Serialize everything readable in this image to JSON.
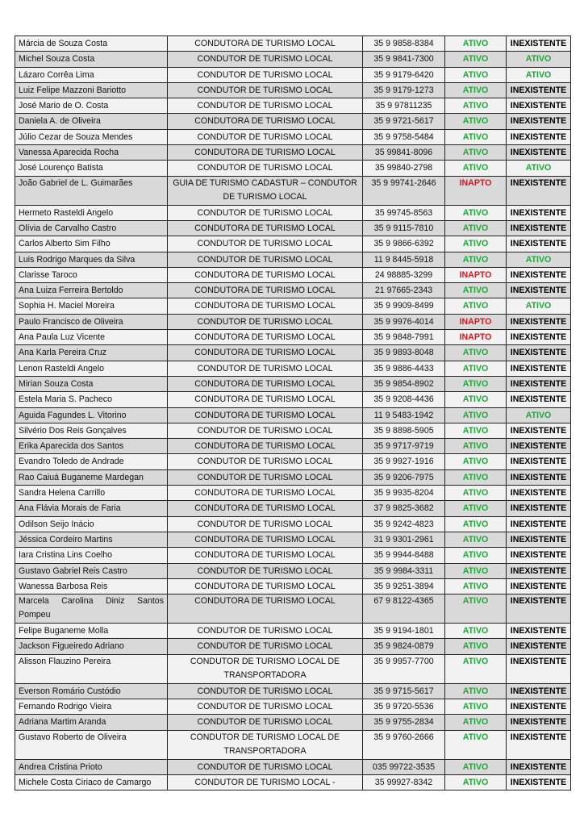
{
  "colors": {
    "ativo": "#1fa83a",
    "inapto": "#e0141e",
    "inexistente": "#000000",
    "row_light": "#f2f2f2",
    "row_dark": "#d9d9d9"
  },
  "rows": [
    {
      "name": "Márcia de Souza Costa",
      "role": "CONDUTORA DE TURISMO LOCAL",
      "phone": "35 9 9858-8384",
      "status": "ATIVO",
      "cadastur": "INEXISTENTE"
    },
    {
      "name": "Michel Souza Costa",
      "role": "CONDUTOR DE TURISMO LOCAL",
      "phone": "35 9 9841-7300",
      "status": "ATIVO",
      "cadastur": "ATIVO"
    },
    {
      "name": "Lázaro Corrêa Lima",
      "role": "CONDUTOR DE TURISMO LOCAL",
      "phone": "35 9 9179-6420",
      "status": "ATIVO",
      "cadastur": "ATIVO"
    },
    {
      "name": "Luiz Felipe Mazzoni Bariotto",
      "role": "CONDUTOR DE TURISMO LOCAL",
      "phone": "35 9 9179-1273",
      "status": "ATIVO",
      "cadastur": "INEXISTENTE"
    },
    {
      "name": "José Mario de O. Costa",
      "role": "CONDUTOR DE TURISMO LOCAL",
      "phone": "35 9 97811235",
      "status": "ATIVO",
      "cadastur": "INEXISTENTE"
    },
    {
      "name": "Daniela A. de Oliveira",
      "role": "CONDUTORA DE TURISMO LOCAL",
      "phone": "35 9 9721-5617",
      "status": "ATIVO",
      "cadastur": "INEXISTENTE"
    },
    {
      "name": "Júlio Cezar de Souza Mendes",
      "role": "CONDUTOR DE TURISMO LOCAL",
      "phone": "35 9 9758-5484",
      "status": "ATIVO",
      "cadastur": "INEXISTENTE"
    },
    {
      "name": "Vanessa Aparecida Rocha",
      "role": "CONDUTORA DE TURISMO LOCAL",
      "phone": "35 99841-8096",
      "status": "ATIVO",
      "cadastur": "INEXISTENTE"
    },
    {
      "name": "José Lourenço Batista",
      "role": "CONDUTOR DE TURISMO LOCAL",
      "phone": "35 99840-2798",
      "status": "ATIVO",
      "cadastur": "ATIVO"
    },
    {
      "name": "João Gabriel de L. Guimarães",
      "role": "GUIA DE TURISMO CADASTUR – CONDUTOR DE TURISMO LOCAL",
      "phone": "35 9 99741-2646",
      "status": "INAPTO",
      "cadastur": "INEXISTENTE",
      "two": true
    },
    {
      "name": "Hermeto Rasteldi Angelo",
      "role": "CONDUTOR DE TURISMO LOCAL",
      "phone": "35 99745-8563",
      "status": "ATIVO",
      "cadastur": "INEXISTENTE"
    },
    {
      "name": "Olívia de Carvalho Castro",
      "role": "CONDUTORA DE TURISMO LOCAL",
      "phone": "35 9 9115-7810",
      "status": "ATIVO",
      "cadastur": "INEXISTENTE"
    },
    {
      "name": "Carlos Alberto Sim Filho",
      "role": "CONDUTOR DE TURISMO LOCAL",
      "phone": "35 9 9866-6392",
      "status": "ATIVO",
      "cadastur": "INEXISTENTE"
    },
    {
      "name": "Luis Rodrigo Marques da Silva",
      "role": "CONDUTOR DE TURISMO LOCAL",
      "phone": "11 9 8445-5918",
      "status": "ATIVO",
      "cadastur": "ATIVO"
    },
    {
      "name": "Clarisse Taroco",
      "role": "CONDUTORA DE TURISMO LOCAL",
      "phone": "24 98885-3299",
      "status": "INAPTO",
      "cadastur": "INEXISTENTE"
    },
    {
      "name": "Ana Luiza Ferreira Bertoldo",
      "role": "CONDUTORA DE TURISMO LOCAL",
      "phone": "21 97665-2343",
      "status": "ATIVO",
      "cadastur": "INEXISTENTE"
    },
    {
      "name": "Sophia H. Maciel Moreira",
      "role": "CONDUTORA DE TURISMO LOCAL",
      "phone": "35 9 9909-8499",
      "status": "ATIVO",
      "cadastur": "ATIVO"
    },
    {
      "name": "Paulo Francisco de Oliveira",
      "role": "CONDUTOR DE TURISMO LOCAL",
      "phone": "35 9 9976-4014",
      "status": "INAPTO",
      "cadastur": "INEXISTENTE"
    },
    {
      "name": "Ana Paula Luz Vicente",
      "role": "CONDUTORA DE TURISMO LOCAL",
      "phone": "35 9 9848-7991",
      "status": "INAPTO",
      "cadastur": "INEXISTENTE"
    },
    {
      "name": "Ana Karla Pereira Cruz",
      "role": "CONDUTORA DE TURISMO LOCAL",
      "phone": "35 9 9893-8048",
      "status": "ATIVO",
      "cadastur": "INEXISTENTE"
    },
    {
      "name": "Lenon Rasteldi Angelo",
      "role": "CONDUTOR DE TURISMO LOCAL",
      "phone": "35 9 9886-4433",
      "status": "ATIVO",
      "cadastur": "INEXISTENTE"
    },
    {
      "name": "Mirian Souza Costa",
      "role": "CONDUTORA DE TURISMO LOCAL",
      "phone": "35 9 9854-8902",
      "status": "ATIVO",
      "cadastur": "INEXISTENTE"
    },
    {
      "name": "Estela Maria S. Pacheco",
      "role": "CONDUTORA DE TURISMO LOCAL",
      "phone": "35 9 9208-4436",
      "status": "ATIVO",
      "cadastur": "INEXISTENTE"
    },
    {
      "name": "Aguida Fagundes L. Vitorino",
      "role": "CONDUTORA DE TURISMO LOCAL",
      "phone": "11 9 5483-1942",
      "status": "ATIVO",
      "cadastur": "ATIVO"
    },
    {
      "name": "Silvério Dos Reis Gonçalves",
      "role": "CONDUTOR DE TURISMO LOCAL",
      "phone": "35 9 8898-5905",
      "status": "ATIVO",
      "cadastur": "INEXISTENTE"
    },
    {
      "name": "Erika Aparecida dos Santos",
      "role": "CONDUTORA DE TURISMO LOCAL",
      "phone": "35 9 9717-9719",
      "status": "ATIVO",
      "cadastur": "INEXISTENTE"
    },
    {
      "name": "Evandro Toledo de Andrade",
      "role": "CONDUTOR DE TURISMO LOCAL",
      "phone": "35 9 9927-1916",
      "status": "ATIVO",
      "cadastur": "INEXISTENTE"
    },
    {
      "name": "Rao Caiuá Buganeme Mardegan",
      "role": "CONDUTOR DE TURISMO LOCAL",
      "phone": "35 9 9206-7975",
      "status": "ATIVO",
      "cadastur": "INEXISTENTE"
    },
    {
      "name": "Sandra Helena Carrillo",
      "role": "CONDUTORA DE TURISMO LOCAL",
      "phone": "35 9 9935-8204",
      "status": "ATIVO",
      "cadastur": "INEXISTENTE"
    },
    {
      "name": "Ana Flávia Morais de Faria",
      "role": "CONDUTORA DE TURISMO LOCAL",
      "phone": "37 9 9825-3682",
      "status": "ATIVO",
      "cadastur": "INEXISTENTE"
    },
    {
      "name": "Odilson Seijo Inácio",
      "role": "CONDUTOR DE TURISMO LOCAL",
      "phone": "35 9 9242-4823",
      "status": "ATIVO",
      "cadastur": "INEXISTENTE"
    },
    {
      "name": "Jéssica Cordeiro Martins",
      "role": "CONDUTORA DE TURISMO LOCAL",
      "phone": "31 9 9301-2961",
      "status": "ATIVO",
      "cadastur": "INEXISTENTE"
    },
    {
      "name": "Iara Cristina Lins Coelho",
      "role": "CONDUTORA DE TURISMO LOCAL",
      "phone": "35 9 9944-8488",
      "status": "ATIVO",
      "cadastur": "INEXISTENTE"
    },
    {
      "name": "Gustavo Gabriel Reis Castro",
      "role": "CONDUTOR DE TURISMO LOCAL",
      "phone": "35 9 9984-3311",
      "status": "ATIVO",
      "cadastur": "INEXISTENTE"
    },
    {
      "name": "Wanessa Barbosa Reis",
      "role": "CONDUTORA DE TURISMO LOCAL",
      "phone": "35 9 9251-3894",
      "status": "ATIVO",
      "cadastur": "INEXISTENTE"
    },
    {
      "name": "Marcela Carolina Diniz Santos Pompeu",
      "role": "CONDUTORA DE TURISMO LOCAL",
      "phone": "67 9 8122-4365",
      "status": "ATIVO",
      "cadastur": "INEXISTENTE",
      "two": true
    },
    {
      "name": "Felipe Buganeme Molla",
      "role": "CONDUTOR DE TURISMO LOCAL",
      "phone": "35 9 9194-1801",
      "status": "ATIVO",
      "cadastur": "INEXISTENTE"
    },
    {
      "name": "Jackson Figueiredo Adriano",
      "role": "CONDUTOR DE TURISMO LOCAL",
      "phone": "35 9 9824-0879",
      "status": "ATIVO",
      "cadastur": "INEXISTENTE"
    },
    {
      "name": "Alisson Flauzino Pereira",
      "role": "CONDUTOR DE TURISMO LOCAL DE TRANSPORTADORA",
      "phone": "35 9 9957-7700",
      "status": "ATIVO",
      "cadastur": "INEXISTENTE",
      "two": true
    },
    {
      "name": "Everson Romário Custódio",
      "role": "CONDUTOR DE TURISMO LOCAL",
      "phone": "35 9 9715-5617",
      "status": "ATIVO",
      "cadastur": "INEXISTENTE"
    },
    {
      "name": "Fernando Rodrigo Vieira",
      "role": "CONDUTOR DE TURISMO LOCAL",
      "phone": "35 9 9720-5536",
      "status": "ATIVO",
      "cadastur": "INEXISTENTE"
    },
    {
      "name": "Adriana Martim Aranda",
      "role": "CONDUTOR DE TURISMO LOCAL",
      "phone": "35 9 9755-2834",
      "status": "ATIVO",
      "cadastur": "INEXISTENTE"
    },
    {
      "name": "Gustavo Roberto de Oliveira",
      "role": "CONDUTOR DE TURISMO LOCAL DE TRANSPORTADORA",
      "phone": "35 9 9760-2666",
      "status": "ATIVO",
      "cadastur": "INEXISTENTE",
      "two": true
    },
    {
      "name": "Andrea Cristina Prioto",
      "role": "CONDUTOR DE TURISMO LOCAL",
      "phone": "035 99722-3535",
      "status": "ATIVO",
      "cadastur": "INEXISTENTE"
    },
    {
      "name": "Michele Costa Ciriaco de Camargo",
      "role": "CONDUTOR DE TURISMO LOCAL -",
      "phone": "35 99927-8342",
      "status": "ATIVO",
      "cadastur": "INEXISTENTE"
    }
  ]
}
